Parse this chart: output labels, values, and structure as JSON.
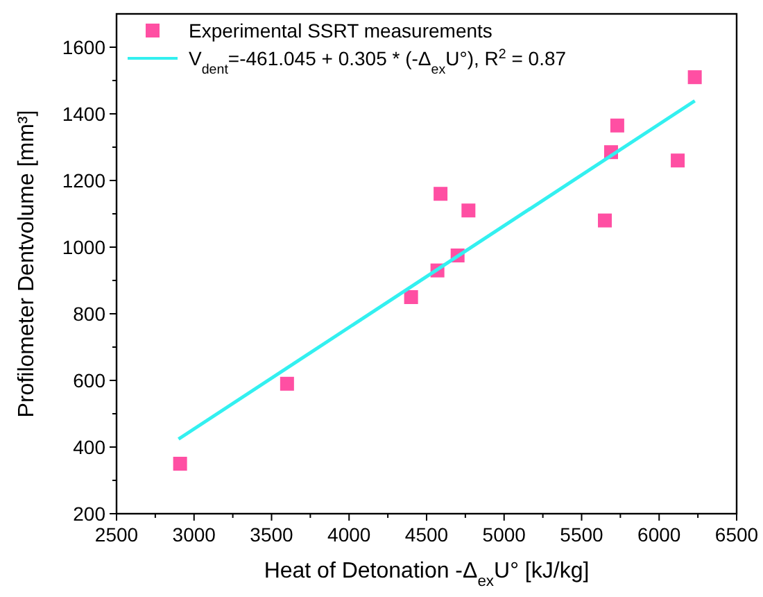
{
  "chart_data": {
    "type": "scatter",
    "xlabel": "Heat of Detonation -Δ$_{ex}$U° [kJ/kg]",
    "ylabel": "Profilometer Dentvolume [mm³]",
    "xlim": [
      2500,
      6500
    ],
    "ylim": [
      200,
      1700
    ],
    "xticks": [
      2500,
      {
        "value": 2750,
        "label": null
      },
      3000,
      {
        "value": 3250,
        "label": null
      },
      3500,
      {
        "value": 3750,
        "label": null
      },
      4000,
      {
        "value": 4250,
        "label": null
      },
      4500,
      {
        "value": 4750,
        "label": null
      },
      5000,
      {
        "value": 5250,
        "label": null
      },
      5500,
      {
        "value": 5750,
        "label": null
      },
      6000,
      {
        "value": 6250,
        "label": null
      },
      6500
    ],
    "yticks": [
      200,
      {
        "value": 300,
        "label": null
      },
      400,
      {
        "value": 500,
        "label": null
      },
      600,
      {
        "value": 700,
        "label": null
      },
      800,
      {
        "value": 900,
        "label": null
      },
      1000,
      {
        "value": 1100,
        "label": null
      },
      1200,
      {
        "value": 1300,
        "label": null
      },
      1400,
      {
        "value": 1500,
        "label": null
      },
      1600
    ],
    "grid": false,
    "legend": "top left",
    "series": [
      {
        "name": "Experimental SSRT measurements",
        "marker": "square",
        "color": "#ff4fa3",
        "x": [
          2910,
          3600,
          4400,
          4570,
          4590,
          4700,
          4770,
          5650,
          5690,
          5730,
          6120,
          6230
        ],
        "values": [
          350,
          590,
          850,
          930,
          1160,
          975,
          1110,
          1080,
          1285,
          1365,
          1260,
          1510
        ]
      },
      {
        "name": "V$_{dent}$=-461.045 + 0.305  * (-Δ$_{ex}$U°), R$^{2}$ = 0.87",
        "type": "line",
        "marker": "none",
        "line_style": "solid",
        "color": "#33f0f0",
        "x": [
          2900,
          6230
        ],
        "values": [
          424,
          1439
        ]
      }
    ]
  }
}
